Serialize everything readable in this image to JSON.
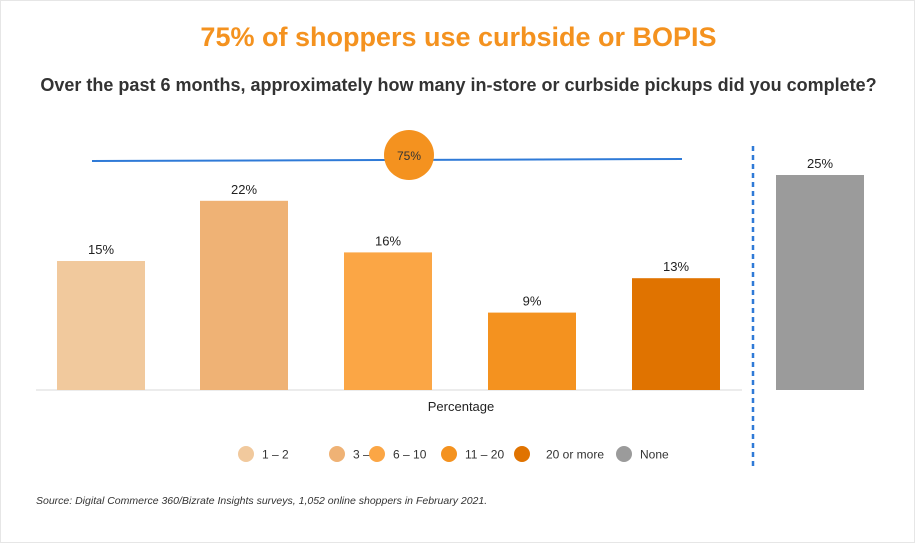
{
  "title": "75% of shoppers use curbside or BOPIS",
  "subtitle": "Over the past 6 months, approximately how many in-store or curbside pickups did you complete?",
  "source": "Source: Digital Commerce 360/Bizrate Insights surveys, 1,052 online shoppers in February 2021.",
  "summary_badge": "75%",
  "chart_data": {
    "type": "bar",
    "categories": [
      "1 – 2",
      "3 – 5",
      "6 – 10",
      "11 – 20",
      "20 or more",
      "None"
    ],
    "values": [
      15,
      22,
      16,
      9,
      13,
      25
    ],
    "value_labels": [
      "15%",
      "22%",
      "16%",
      "9%",
      "13%",
      "25%"
    ],
    "colors": [
      "#f1c99d",
      "#efb275",
      "#fba645",
      "#f4921f",
      "#e07300",
      "#9b9b9b"
    ],
    "xlabel": "Percentage",
    "ylabel": "",
    "ylim": [
      0,
      26
    ],
    "grid": false,
    "legend_position": "bottom"
  }
}
